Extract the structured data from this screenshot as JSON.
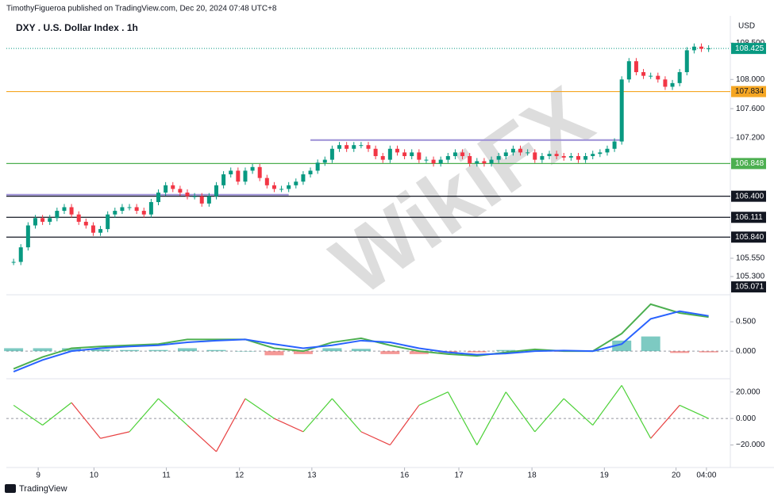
{
  "publisher": "TimothyFigueroa published on TradingView.com, Dec 20, 2024 07:48 UTC+8",
  "footer": "TradingView",
  "watermark": "WikiFX",
  "chart_data": [
    {
      "type": "candlestick",
      "title": "DXY . U.S. Dollar Index . 1h",
      "currency": "USD",
      "grid": false,
      "xlim": [
        -1,
        99
      ],
      "ylim": [
        105.05,
        108.6
      ],
      "yticks": [
        {
          "value": 108.5,
          "label": "108.500"
        },
        {
          "value": 108,
          "label": "108.000"
        },
        {
          "value": 107.6,
          "label": "107.600"
        },
        {
          "value": 107.2,
          "label": "107.200"
        },
        {
          "value": 105.55,
          "label": "105.550"
        },
        {
          "value": 105.3,
          "label": "105.300"
        }
      ],
      "up_color": "#089981",
      "down_color": "#f23645",
      "closes": [
        105.5,
        105.7,
        106.0,
        106.1,
        106.05,
        106.1,
        106.2,
        106.25,
        106.15,
        106.05,
        106.0,
        105.9,
        105.95,
        106.15,
        106.2,
        106.25,
        106.25,
        106.2,
        106.15,
        106.32,
        106.45,
        106.55,
        106.5,
        106.45,
        106.4,
        106.4,
        106.3,
        106.4,
        106.55,
        106.7,
        106.75,
        106.6,
        106.75,
        106.8,
        106.65,
        106.55,
        106.5,
        106.5,
        106.55,
        106.6,
        106.7,
        106.75,
        106.86,
        106.9,
        107.05,
        107.1,
        107.05,
        107.1,
        107.1,
        107.05,
        106.95,
        106.9,
        107.05,
        107.0,
        106.95,
        107.0,
        106.9,
        106.9,
        106.85,
        106.9,
        106.95,
        107.0,
        106.95,
        106.85,
        106.88,
        106.85,
        106.9,
        106.95,
        107.0,
        107.05,
        107.0,
        107.0,
        106.9,
        106.95,
        106.98,
        106.95,
        106.93,
        106.95,
        106.9,
        106.95,
        106.98,
        107.0,
        107.05,
        107.15,
        108.0,
        108.25,
        108.1,
        108.05,
        108.05,
        108.0,
        107.9,
        107.95,
        108.1,
        108.4,
        108.45,
        108.42,
        108.425
      ],
      "levels": [
        {
          "value": 108.425,
          "label": "108.425",
          "color": "#089981",
          "text_color": "#ffffff",
          "dash": true
        },
        {
          "value": 107.834,
          "label": "107.834",
          "color": "#f5a623",
          "text_color": "#131722",
          "dash": false
        },
        {
          "value": 106.848,
          "label": "106.848",
          "color": "#4caf50",
          "text_color": "#ffffff",
          "dash": false
        },
        {
          "value": 106.4,
          "label": "106.400",
          "color": "#131722",
          "text_color": "#ffffff",
          "dash": false
        },
        {
          "value": 106.111,
          "label": "106.111",
          "color": "#131722",
          "text_color": "#ffffff",
          "dash": false
        },
        {
          "value": 105.84,
          "label": "105.840",
          "color": "#131722",
          "text_color": "#ffffff",
          "dash": false
        }
      ],
      "marker": {
        "value": 105.071,
        "label": "105.071"
      },
      "trendlines": [
        {
          "x": [
            41,
            84
          ],
          "y": [
            107.17,
            107.17
          ],
          "color": "#9c8fd6"
        },
        {
          "x": [
            -1,
            38
          ],
          "y": [
            106.42,
            106.42
          ],
          "color": "#9c8fd6"
        }
      ]
    },
    {
      "type": "macd",
      "ylim": [
        -0.47,
        0.96
      ],
      "yticks": [
        {
          "value": 0.5,
          "label": "0.500"
        },
        {
          "value": 0,
          "label": "0.000"
        }
      ],
      "x": [
        0,
        4,
        8,
        12,
        16,
        20,
        24,
        28,
        32,
        36,
        40,
        44,
        48,
        52,
        56,
        60,
        64,
        68,
        72,
        76,
        80,
        84,
        88,
        92,
        96
      ],
      "series": [
        {
          "color": "#4caf50",
          "values": [
            -0.3,
            -0.1,
            0.05,
            0.08,
            0.1,
            0.12,
            0.2,
            0.2,
            0.2,
            0.05,
            0.0,
            0.15,
            0.22,
            0.1,
            0.0,
            -0.05,
            -0.08,
            -0.02,
            0.03,
            0.0,
            0.0,
            0.3,
            0.8,
            0.65,
            0.58
          ]
        },
        {
          "color": "#2962ff",
          "values": [
            -0.35,
            -0.15,
            0.0,
            0.05,
            0.08,
            0.1,
            0.15,
            0.18,
            0.2,
            0.12,
            0.05,
            0.1,
            0.18,
            0.15,
            0.05,
            -0.02,
            -0.06,
            -0.04,
            0.0,
            0.01,
            0.0,
            0.12,
            0.55,
            0.68,
            0.6
          ]
        }
      ],
      "histogram": {
        "up_color": "#26a69a",
        "down_color": "#ef5350",
        "values": [
          0.05,
          0.05,
          0.05,
          0.03,
          0.02,
          0.02,
          0.05,
          0.02,
          0,
          -0.07,
          -0.05,
          0.05,
          0.04,
          -0.05,
          -0.05,
          -0.03,
          -0.02,
          0.02,
          0.03,
          -0.01,
          0,
          0.18,
          0.25,
          -0.03,
          -0.02
        ]
      }
    },
    {
      "type": "oscillator",
      "ylim": [
        -37,
        30
      ],
      "yticks": [
        {
          "value": 20,
          "label": "20.000"
        },
        {
          "value": 0,
          "label": "0.000"
        },
        {
          "value": -20,
          "label": "−20.000"
        }
      ],
      "up_color": "#4cd137",
      "down_color": "#e84142",
      "x": [
        0,
        4,
        8,
        12,
        16,
        20,
        24,
        28,
        32,
        36,
        40,
        44,
        48,
        52,
        56,
        60,
        64,
        68,
        72,
        76,
        80,
        84,
        88,
        92,
        96
      ],
      "values": [
        10,
        -5,
        12,
        -15,
        -10,
        15,
        -5,
        -25,
        15,
        0,
        -10,
        15,
        -10,
        -20,
        10,
        20,
        -20,
        20,
        -10,
        15,
        -5,
        25,
        -15,
        10,
        0
      ],
      "xticks": [
        {
          "value": 3.4,
          "label": "9"
        },
        {
          "value": 11.1,
          "label": "10"
        },
        {
          "value": 21.1,
          "label": "11"
        },
        {
          "value": 31.2,
          "label": "12"
        },
        {
          "value": 41.2,
          "label": "13"
        },
        {
          "value": 54,
          "label": "16"
        },
        {
          "value": 61.5,
          "label": "17"
        },
        {
          "value": 71.6,
          "label": "18"
        },
        {
          "value": 81.6,
          "label": "19"
        },
        {
          "value": 91.5,
          "label": "20"
        },
        {
          "value": 95.7,
          "label": "04:00"
        }
      ]
    }
  ]
}
